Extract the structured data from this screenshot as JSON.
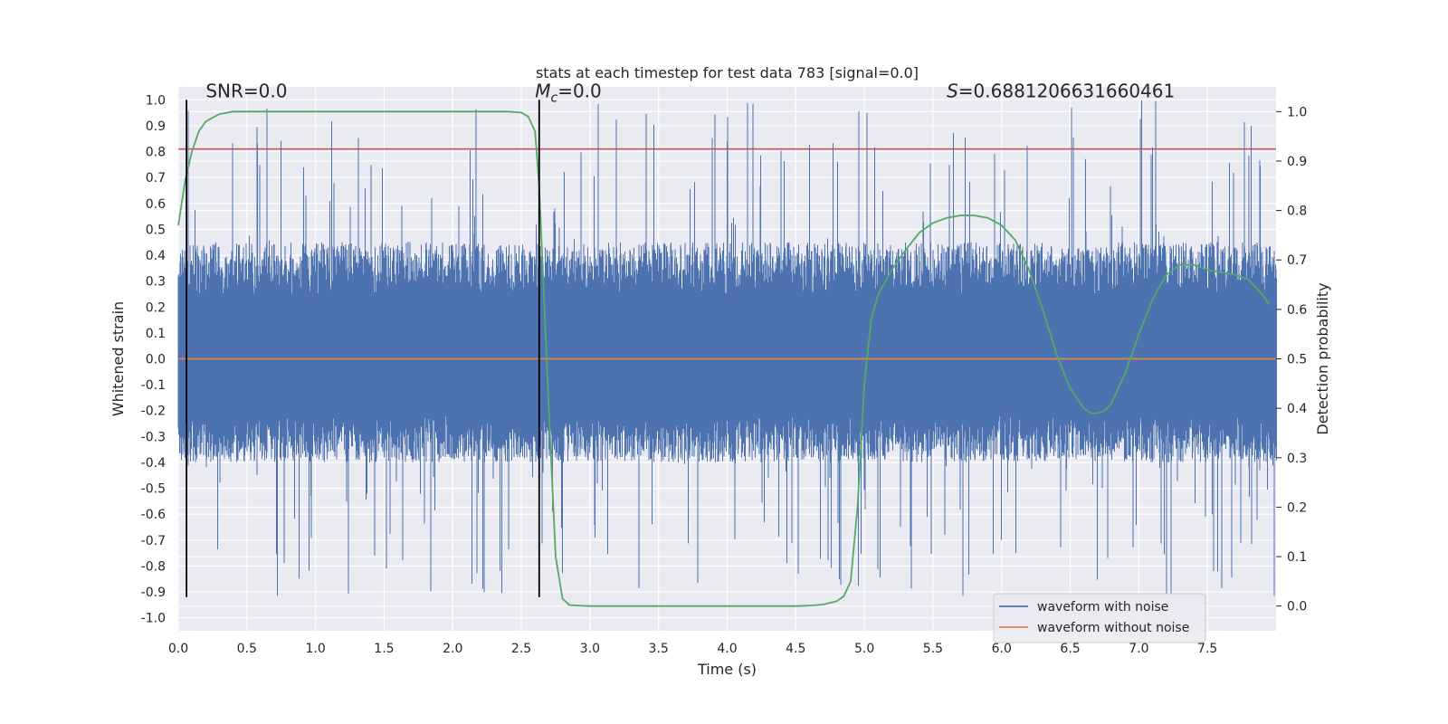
{
  "chart_data": {
    "type": "line",
    "title": "stats at each timestep for test data 783 [signal=0.0]",
    "xlabel": "Time (s)",
    "ylabel": "Whitened strain",
    "y2label": "Detection probability",
    "xlim": [
      0.0,
      8.0
    ],
    "ylim": [
      -1.05,
      1.05
    ],
    "y2lim": [
      -0.05,
      1.05
    ],
    "x_ticks": [
      "0.0",
      "0.5",
      "1.0",
      "1.5",
      "2.0",
      "2.5",
      "3.0",
      "3.5",
      "4.0",
      "4.5",
      "5.0",
      "5.5",
      "6.0",
      "6.5",
      "7.0",
      "7.5"
    ],
    "y_ticks": [
      "-1.0",
      "-0.9",
      "-0.8",
      "-0.7",
      "-0.6",
      "-0.5",
      "-0.4",
      "-0.3",
      "-0.2",
      "-0.1",
      "0.0",
      "0.1",
      "0.2",
      "0.3",
      "0.4",
      "0.5",
      "0.6",
      "0.7",
      "0.8",
      "0.9",
      "1.0"
    ],
    "y2_ticks": [
      "0.0",
      "0.1",
      "0.2",
      "0.3",
      "0.4",
      "0.5",
      "0.6",
      "0.7",
      "0.8",
      "0.9",
      "1.0"
    ],
    "annotations": {
      "snr": "SNR=0.0",
      "mc_prefix": "M",
      "mc_sub": "c",
      "mc_value": "=0.0",
      "s_prefix": "S",
      "s_value": "=0.6881206631660461"
    },
    "legend": {
      "placement": "lower-right",
      "entries": [
        "waveform with noise",
        "waveform without noise"
      ]
    },
    "colors": {
      "noise": "#4c72b0",
      "clean": "#dd8452",
      "probability": "#55a868",
      "threshold": "#c44e52",
      "vline": "#000000",
      "plot_bg": "#eaeaf2",
      "grid": "#ffffff"
    },
    "series": [
      {
        "name": "waveform with noise",
        "axis": "left",
        "kind": "noise-envelope",
        "x_range": [
          0.0,
          8.0
        ],
        "typical_max": 0.45,
        "typical_min": -0.4,
        "peak_max": 1.0,
        "peak_min": -0.92
      },
      {
        "name": "waveform without noise",
        "axis": "left",
        "x": [
          0.0,
          8.0
        ],
        "y": [
          0.0,
          0.0
        ]
      },
      {
        "name": "detection probability",
        "axis": "right",
        "x": [
          0.0,
          0.05,
          0.1,
          0.15,
          0.2,
          0.3,
          0.4,
          0.5,
          1.0,
          2.0,
          2.4,
          2.5,
          2.55,
          2.6,
          2.63,
          2.7,
          2.75,
          2.8,
          2.85,
          3.0,
          3.5,
          4.0,
          4.5,
          4.6,
          4.7,
          4.8,
          4.85,
          4.9,
          4.95,
          5.0,
          5.05,
          5.1,
          5.2,
          5.3,
          5.4,
          5.5,
          5.6,
          5.7,
          5.8,
          5.9,
          6.0,
          6.1,
          6.2,
          6.3,
          6.4,
          6.5,
          6.6,
          6.65,
          6.7,
          6.75,
          6.8,
          6.9,
          7.0,
          7.1,
          7.2,
          7.3,
          7.4,
          7.5,
          7.6,
          7.7,
          7.8,
          7.9,
          7.95
        ],
        "y": [
          0.77,
          0.86,
          0.92,
          0.96,
          0.98,
          0.995,
          1.0,
          1.0,
          1.0,
          1.0,
          1.0,
          0.998,
          0.99,
          0.96,
          0.85,
          0.4,
          0.1,
          0.015,
          0.002,
          0.0,
          0.0,
          0.0,
          0.0,
          0.001,
          0.003,
          0.01,
          0.02,
          0.05,
          0.2,
          0.45,
          0.58,
          0.63,
          0.68,
          0.72,
          0.755,
          0.775,
          0.785,
          0.79,
          0.79,
          0.785,
          0.77,
          0.74,
          0.68,
          0.6,
          0.51,
          0.44,
          0.4,
          0.39,
          0.39,
          0.395,
          0.41,
          0.47,
          0.55,
          0.62,
          0.67,
          0.69,
          0.69,
          0.68,
          0.675,
          0.67,
          0.66,
          0.63,
          0.61
        ]
      },
      {
        "name": "threshold",
        "axis": "left",
        "x": [
          0.0,
          8.0
        ],
        "y": [
          0.81,
          0.81
        ]
      }
    ],
    "vlines": [
      {
        "x": 0.06,
        "ymin": -0.92,
        "ymax": 1.0
      },
      {
        "x": 2.63,
        "ymin": -0.92,
        "ymax": 1.0
      }
    ]
  }
}
